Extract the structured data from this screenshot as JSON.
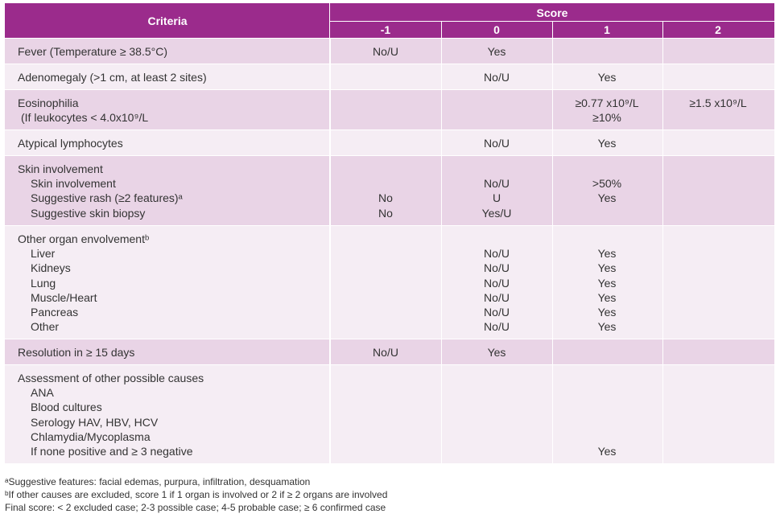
{
  "header": {
    "criteria": "Criteria",
    "score": "Score",
    "score_columns": [
      "-1",
      "0",
      "1",
      "2"
    ]
  },
  "rows": [
    {
      "title": {
        "text": "Fever (Temperature ≥ 38.5°C)",
        "cells": {
          "c0": "No/U",
          "c1": "Yes"
        }
      },
      "items": []
    },
    {
      "title": {
        "text": "Adenomegaly (>1 cm, at least 2 sites)",
        "cells": {
          "c1": "No/U",
          "c2": "Yes"
        }
      },
      "items": []
    },
    {
      "title": {
        "text": "Eosinophilia",
        "cells": {
          "c2": "≥0.77 x10⁹/L",
          "c3": "≥1.5 x10⁹/L"
        }
      },
      "items": [
        {
          "text": "(If leukocytes < 4.0x10⁹/L",
          "cells": {
            "c2": "≥10%"
          }
        }
      ]
    },
    {
      "title": {
        "text": "Atypical lymphocytes",
        "cells": {
          "c1": "No/U",
          "c2": "Yes"
        }
      },
      "items": []
    },
    {
      "title": {
        "text": "Skin involvement",
        "cells": {}
      },
      "items": [
        {
          "text": "Skin involvement",
          "cells": {
            "c1": "No/U",
            "c2": ">50%"
          }
        },
        {
          "text": "Suggestive rash (≥2 features)ᵃ",
          "cells": {
            "c0": "No",
            "c1": "U",
            "c2": "Yes"
          }
        },
        {
          "text": "Suggestive skin biopsy",
          "cells": {
            "c0": "No",
            "c1": "Yes/U"
          }
        }
      ]
    },
    {
      "title": {
        "text": "Other organ envolvementᵇ",
        "cells": {}
      },
      "items": [
        {
          "text": "Liver",
          "cells": {
            "c1": "No/U",
            "c2": "Yes"
          }
        },
        {
          "text": "Kidneys",
          "cells": {
            "c1": "No/U",
            "c2": "Yes"
          }
        },
        {
          "text": "Lung",
          "cells": {
            "c1": "No/U",
            "c2": "Yes"
          }
        },
        {
          "text": "Muscle/Heart",
          "cells": {
            "c1": "No/U",
            "c2": "Yes"
          }
        },
        {
          "text": "Pancreas",
          "cells": {
            "c1": "No/U",
            "c2": "Yes"
          }
        },
        {
          "text": "Other",
          "cells": {
            "c1": "No/U",
            "c2": "Yes"
          }
        }
      ]
    },
    {
      "title": {
        "text": "Resolution in ≥ 15 days",
        "cells": {
          "c0": "No/U",
          "c1": "Yes"
        }
      },
      "items": []
    },
    {
      "title": {
        "text": "Assessment of other possible causes",
        "cells": {}
      },
      "items": [
        {
          "text": "ANA",
          "cells": {}
        },
        {
          "text": "Blood cultures",
          "cells": {}
        },
        {
          "text": "Serology HAV, HBV, HCV",
          "cells": {}
        },
        {
          "text": "Chlamydia/Mycoplasma",
          "cells": {}
        },
        {
          "text": "If none positive and ≥ 3 negative",
          "cells": {
            "c2": "Yes"
          }
        }
      ]
    }
  ],
  "footnotes": [
    "ᵃSuggestive features: facial edemas, purpura, infiltration, desquamation",
    "ᵇIf other causes are excluded, score 1 if 1 organ is involved or 2 if ≥ 2 organs are involved",
    "Final score: < 2 excluded case; 2-3 possible case; 4-5 probable case; ≥ 6 confirmed case"
  ]
}
